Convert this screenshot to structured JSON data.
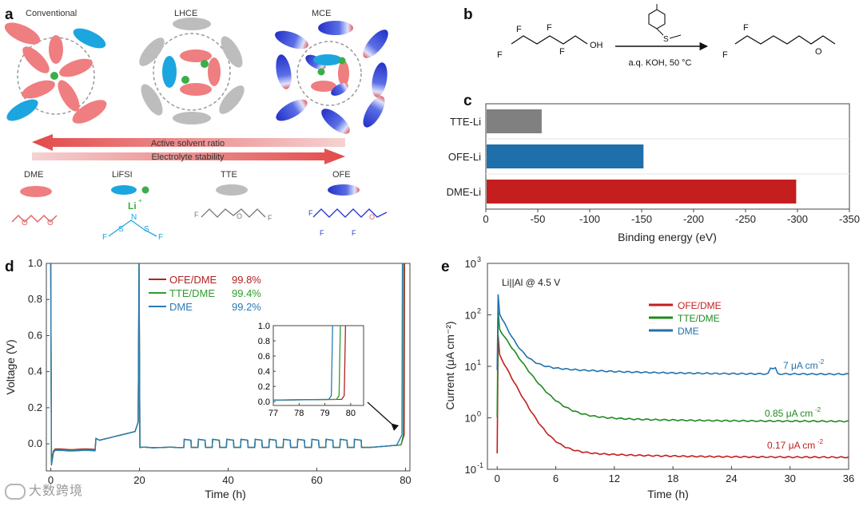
{
  "panels": {
    "a": "a",
    "b": "b",
    "c": "c",
    "d": "d",
    "e": "e"
  },
  "panel_a": {
    "schemes": [
      "Conventional",
      "LHCE",
      "MCE"
    ],
    "arrow_left_label": "Active solvent ratio",
    "arrow_right_label": "Electrolyte stability",
    "species": [
      "DME",
      "LiFSI",
      "TTE",
      "OFE"
    ],
    "li_label": "Li",
    "li_charge": "+",
    "n_label": "N",
    "atoms": {
      "O": "O",
      "F": "F",
      "S": "S"
    },
    "colors": {
      "dme": "#e8767a",
      "lifsi": "#1ba6e0",
      "li_dot": "#3aae4a",
      "tte": "#b3b3b3",
      "ofe": "#2d3fd0"
    }
  },
  "panel_b": {
    "reagent": "a.q. KOH, 50 °C",
    "atoms": {
      "F": "F",
      "OH": "OH",
      "O": "O",
      "S": "S"
    }
  },
  "chart_data": [
    {
      "id": "c",
      "type": "bar",
      "orientation": "horizontal",
      "categories": [
        "TTE-Li",
        "OFE-Li",
        "DME-Li"
      ],
      "values": [
        -53,
        -151,
        -298
      ],
      "colors": [
        "#808080",
        "#1f6fab",
        "#c41e1e"
      ],
      "xlabel": "Binding energy (eV)",
      "xlim": [
        0,
        -350
      ],
      "xticks": [
        0,
        -50,
        -100,
        -150,
        -200,
        -250,
        -300,
        -350
      ],
      "grid": true
    },
    {
      "id": "d",
      "type": "line",
      "xlabel": "Time (h)",
      "ylabel": "Voltage (V)",
      "xlim": [
        -1,
        81
      ],
      "ylim": [
        -0.15,
        1.0
      ],
      "xticks": [
        0,
        20,
        40,
        60,
        80
      ],
      "yticks": [
        0.0,
        0.2,
        0.4,
        0.6,
        0.8,
        1.0
      ],
      "series": [
        {
          "name": "OFE/DME",
          "value_label": "99.8%",
          "color": "#b22222",
          "cutoff": 79.8,
          "min": -0.09
        },
        {
          "name": "TTE/DME",
          "value_label": "99.4%",
          "color": "#2e9c2e",
          "cutoff": 79.6,
          "min": -0.11
        },
        {
          "name": "DME",
          "value_label": "99.2%",
          "color": "#2b7bb4",
          "cutoff": 79.3,
          "min": -0.12
        }
      ],
      "legend_position": "top-center",
      "inset": {
        "xlim": [
          77,
          80.5
        ],
        "ylim": [
          -0.05,
          1.0
        ],
        "xticks": [
          77,
          78,
          79,
          80
        ],
        "yticks": [
          0.0,
          0.2,
          0.4,
          0.6,
          0.8,
          1.0
        ]
      }
    },
    {
      "id": "e",
      "type": "line",
      "scale_y": "log",
      "xlabel": "Time (h)",
      "ylabel": "Current (μA cm⁻²)",
      "xlim": [
        -1,
        36
      ],
      "ylim": [
        0.1,
        1000
      ],
      "xticks": [
        0,
        6,
        12,
        18,
        24,
        30,
        36
      ],
      "ytick_mantissa": "10",
      "ytick_exponents": [
        "-1",
        "0",
        "1",
        "2",
        "3"
      ],
      "annotation": "Li||Al @ 4.5 V",
      "legend_position": "top-center",
      "series": [
        {
          "name": "OFE/DME",
          "color": "#c41e1e",
          "final_value": 0.17,
          "final_label": "0.17 μA cm",
          "peak": 40
        },
        {
          "name": "TTE/DME",
          "color": "#1f8a1f",
          "final_value": 0.85,
          "final_label": "0.85 μA cm",
          "peak": 120
        },
        {
          "name": "DME",
          "color": "#2072ad",
          "final_value": 7,
          "final_label": "7 μA cm",
          "peak": 250
        }
      ],
      "label_superscript": "-2"
    }
  ],
  "watermark": "大数跨境"
}
